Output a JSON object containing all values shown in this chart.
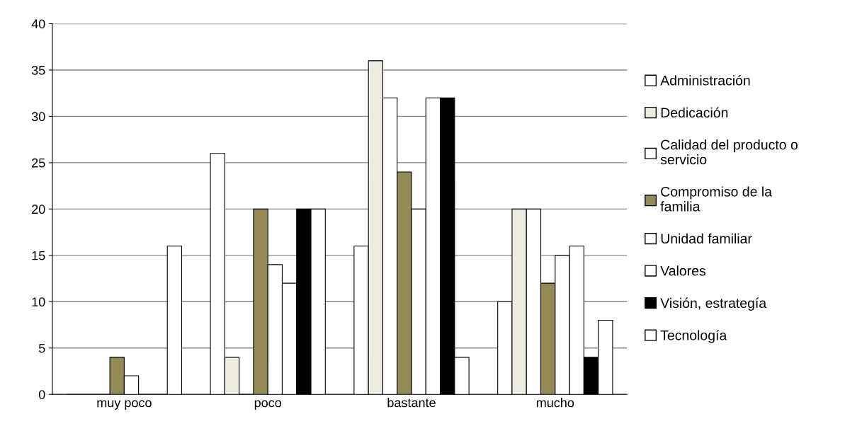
{
  "chart_data": {
    "type": "bar",
    "categories": [
      "muy poco",
      "poco",
      "bastante",
      "mucho"
    ],
    "series": [
      {
        "name": "Administración",
        "color": "#ffffff",
        "values": [
          0,
          26,
          16,
          10
        ]
      },
      {
        "name": "Dedicación",
        "color": "#eeece1",
        "values": [
          0,
          4,
          36,
          20
        ]
      },
      {
        "name": "Calidad del producto o servicio",
        "color": "#ffffff",
        "values": [
          0,
          0,
          32,
          20
        ]
      },
      {
        "name": "Compromiso de la familia",
        "color": "#948a54",
        "values": [
          4,
          20,
          24,
          12
        ]
      },
      {
        "name": "Unidad familiar",
        "color": "#ffffff",
        "values": [
          2,
          14,
          20,
          15
        ]
      },
      {
        "name": "Valores",
        "color": "#ffffff",
        "values": [
          0,
          12,
          32,
          16
        ]
      },
      {
        "name": "Visión, estrategía",
        "color": "#000000",
        "values": [
          0,
          20,
          32,
          4
        ]
      },
      {
        "name": "Tecnología",
        "color": "#ffffff",
        "values": [
          16,
          20,
          4,
          8
        ]
      }
    ],
    "ylim": [
      0,
      40
    ],
    "yticks": [
      0,
      5,
      10,
      15,
      20,
      25,
      30,
      35,
      40
    ],
    "grid": "y",
    "legend": "right"
  }
}
